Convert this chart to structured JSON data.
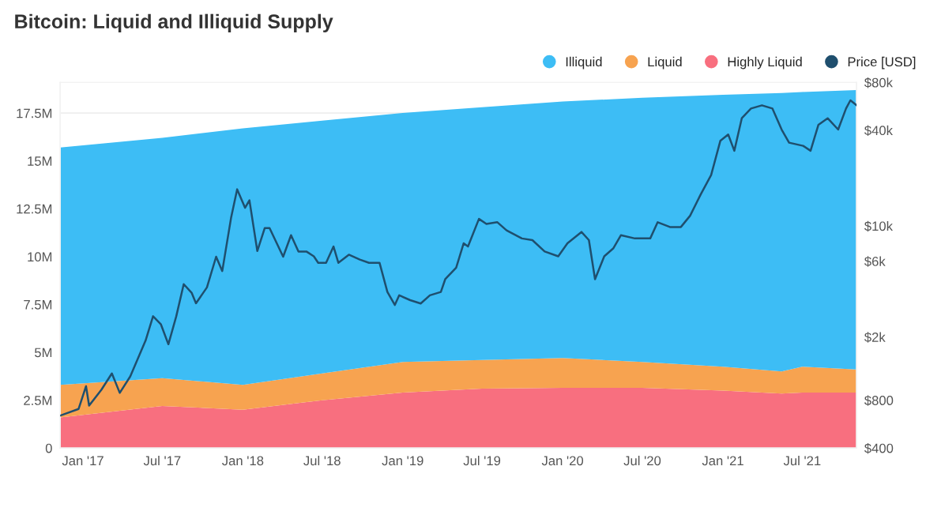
{
  "chart_data": {
    "type": "area",
    "stacked": true,
    "title": "Bitcoin: Liquid and Illiquid Supply",
    "x": [
      "2016-11-10",
      "2017-07-01",
      "2018-01-01",
      "2018-07-01",
      "2019-01-01",
      "2019-07-01",
      "2020-01-01",
      "2020-07-01",
      "2021-01-01",
      "2021-05-15",
      "2021-07-01",
      "2021-11-02"
    ],
    "series": [
      {
        "name": "Highly Liquid",
        "color": "#f86f7f",
        "values": [
          1.6,
          2.2,
          2.0,
          2.5,
          2.9,
          3.1,
          3.15,
          3.15,
          3.0,
          2.85,
          2.9,
          2.9
        ]
      },
      {
        "name": "Liquid",
        "color": "#f7a350",
        "values": [
          1.7,
          1.45,
          1.3,
          1.4,
          1.6,
          1.5,
          1.55,
          1.35,
          1.25,
          1.15,
          1.35,
          1.2
        ]
      },
      {
        "name": "Illiquid",
        "color": "#3dbdf5",
        "values": [
          12.4,
          12.55,
          13.4,
          13.2,
          13.0,
          13.2,
          13.4,
          13.8,
          14.2,
          14.55,
          14.35,
          14.6
        ]
      },
      {
        "name": "Price [USD]",
        "type": "line",
        "axis": "y2",
        "color": "#1f4f6e",
        "x": [
          "2016-11-10",
          "2016-12-22",
          "2017-01-08",
          "2017-01-15",
          "2017-02-12",
          "2017-03-08",
          "2017-03-26",
          "2017-04-19",
          "2017-05-24",
          "2017-06-10",
          "2017-06-28",
          "2017-07-15",
          "2017-08-02",
          "2017-08-19",
          "2017-09-06",
          "2017-09-16",
          "2017-10-11",
          "2017-11-01",
          "2017-11-15",
          "2017-12-05",
          "2017-12-19",
          "2018-01-06",
          "2018-01-16",
          "2018-02-03",
          "2018-02-20",
          "2018-03-03",
          "2018-04-03",
          "2018-04-21",
          "2018-05-08",
          "2018-05-26",
          "2018-06-12",
          "2018-06-22",
          "2018-07-10",
          "2018-07-27",
          "2018-08-07",
          "2018-08-31",
          "2018-09-25",
          "2018-10-16",
          "2018-11-09",
          "2018-11-27",
          "2018-12-14",
          "2018-12-24",
          "2019-01-18",
          "2019-02-11",
          "2019-03-04",
          "2019-03-29",
          "2019-04-08",
          "2019-05-03",
          "2019-05-20",
          "2019-05-30",
          "2019-06-24",
          "2019-07-11",
          "2019-08-05",
          "2019-08-26",
          "2019-09-30",
          "2019-10-24",
          "2019-11-21",
          "2019-12-22",
          "2020-01-12",
          "2020-02-13",
          "2020-03-01",
          "2020-03-15",
          "2020-04-05",
          "2020-04-26",
          "2020-05-13",
          "2020-06-14",
          "2020-07-19",
          "2020-08-05",
          "2020-09-02",
          "2020-09-27",
          "2020-10-18",
          "2020-11-11",
          "2020-12-05",
          "2020-12-26",
          "2021-01-13",
          "2021-01-27",
          "2021-02-13",
          "2021-03-06",
          "2021-03-31",
          "2021-04-24",
          "2021-05-15",
          "2021-06-01",
          "2021-07-03",
          "2021-07-20",
          "2021-08-07",
          "2021-08-28",
          "2021-09-21",
          "2021-10-09",
          "2021-10-19",
          "2021-11-02"
        ],
        "values": [
          640,
          705,
          980,
          740,
          930,
          1180,
          890,
          1130,
          1900,
          2700,
          2400,
          1800,
          2700,
          4300,
          3800,
          3260,
          4100,
          6400,
          5200,
          11200,
          17000,
          13000,
          14500,
          6950,
          9700,
          9700,
          6400,
          8740,
          6900,
          6900,
          6440,
          5860,
          5860,
          7420,
          5860,
          6590,
          6140,
          5860,
          5860,
          3840,
          3180,
          3660,
          3410,
          3250,
          3660,
          3840,
          4620,
          5460,
          7770,
          7420,
          11070,
          10300,
          10550,
          9380,
          8340,
          8140,
          6900,
          6440,
          7770,
          9160,
          8140,
          4620,
          6440,
          7240,
          8740,
          8340,
          8340,
          10550,
          9840,
          9840,
          11590,
          15740,
          20900,
          34300,
          37600,
          29700,
          47600,
          54800,
          57400,
          54800,
          40400,
          33400,
          31900,
          29700,
          43300,
          47600,
          40400,
          54800,
          61700,
          57400
        ]
      }
    ],
    "ylim": [
      0,
      19.1
    ],
    "yticks": [
      {
        "value": 0,
        "label": "0"
      },
      {
        "value": 2.5,
        "label": "2.5M"
      },
      {
        "value": 5,
        "label": "5M"
      },
      {
        "value": 7.5,
        "label": "7.5M"
      },
      {
        "value": 10,
        "label": "10M"
      },
      {
        "value": 12.5,
        "label": "12.5M"
      },
      {
        "value": 15,
        "label": "15M"
      },
      {
        "value": 17.5,
        "label": "17.5M"
      }
    ],
    "log": "y2",
    "y2lim": [
      400,
      80000
    ],
    "y2ticks": [
      {
        "value": 400,
        "label": "$400"
      },
      {
        "value": 800,
        "label": "$800"
      },
      {
        "value": 2000,
        "label": "$2k"
      },
      {
        "value": 6000,
        "label": "$6k"
      },
      {
        "value": 10000,
        "label": "$10k"
      },
      {
        "value": 40000,
        "label": "$40k"
      },
      {
        "value": 80000,
        "label": "$80k"
      }
    ],
    "xlim": [
      "2016-11-10",
      "2021-11-02"
    ],
    "xticks": [
      {
        "value": "2017-01-01",
        "label": "Jan '17"
      },
      {
        "value": "2017-07-01",
        "label": "Jul '17"
      },
      {
        "value": "2018-01-01",
        "label": "Jan '18"
      },
      {
        "value": "2018-07-01",
        "label": "Jul '18"
      },
      {
        "value": "2019-01-01",
        "label": "Jan '19"
      },
      {
        "value": "2019-07-01",
        "label": "Jul '19"
      },
      {
        "value": "2020-01-01",
        "label": "Jan '20"
      },
      {
        "value": "2020-07-01",
        "label": "Jul '20"
      },
      {
        "value": "2021-01-01",
        "label": "Jan '21"
      },
      {
        "value": "2021-07-01",
        "label": "Jul '21"
      }
    ],
    "grid": "y",
    "legend": "top right"
  }
}
